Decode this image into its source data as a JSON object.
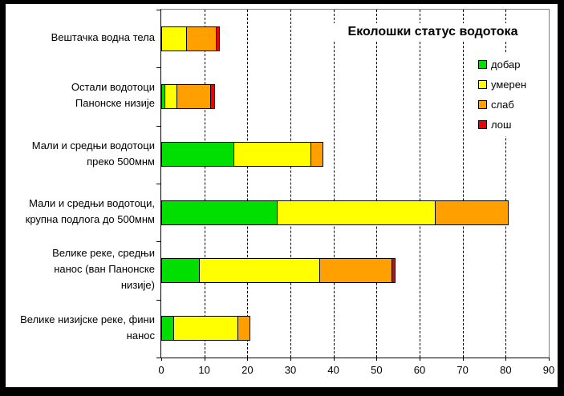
{
  "window": {
    "background": "#ffffff",
    "frame_color": "#000000"
  },
  "chart_data": {
    "type": "bar",
    "orientation": "horizontal",
    "stacked": true,
    "title": "Еколошки статус водотока",
    "categories": [
      "Вештачка водна тела",
      "Остали водотоци Панонске низије",
      "Мали и средњи водотоци преко 500мнм",
      "Мали и средњи водотоци, крупна подлога до 500мнм",
      "Велике реке, средњи нанос (ван Панонске низије)",
      "Велике низијске реке, фини нанос"
    ],
    "category_label_lines": [
      [
        "Вештачка водна тела"
      ],
      [
        "Остали водотоци",
        "Панонске низије"
      ],
      [
        "Мали и средњи водотоци",
        "преко 500мнм"
      ],
      [
        "Мали и средњи водотоци,",
        "крупна подлога до 500мнм"
      ],
      [
        "Велике реке, средњи",
        "нанос (ван Панонске",
        "низије)"
      ],
      [
        "Велике низијске реке, фини",
        "нанос"
      ]
    ],
    "series": [
      {
        "name": "добар",
        "color": "#00DF00",
        "values": [
          0,
          1,
          17,
          27,
          9,
          3
        ]
      },
      {
        "name": "умерен",
        "color": "#FFFF00",
        "values": [
          6,
          3,
          18,
          37,
          28,
          15
        ]
      },
      {
        "name": "слаб",
        "color": "#FFA000",
        "values": [
          7,
          8,
          3,
          17,
          17,
          3
        ]
      },
      {
        "name": "лош",
        "color": "#F00000",
        "values": [
          1,
          1,
          0,
          0,
          1,
          0
        ]
      }
    ],
    "xlim": [
      0,
      90
    ],
    "xticks": [
      0,
      10,
      20,
      30,
      40,
      50,
      60,
      70,
      80,
      90
    ],
    "grid": "vertical-dashed",
    "legend_position": "right-inside",
    "bar_border_color": "#000000",
    "plot_border_color": "#808080",
    "axis_color": "#000000"
  }
}
